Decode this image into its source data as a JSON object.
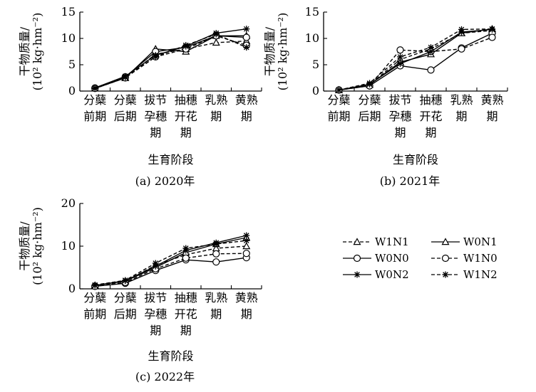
{
  "chart_data": [
    {
      "type": "line",
      "caption": "(a) 2020年",
      "ylabel": "干物质量/",
      "ylabel_unit": "(10² kg·hm⁻²)",
      "xlabel": "生育阶段",
      "ylim": [
        0,
        15
      ],
      "yticks": [
        "0",
        "5",
        "10",
        "15"
      ],
      "categories": [
        [
          "分蘖",
          "前期"
        ],
        [
          "分蘖",
          "后期"
        ],
        [
          "拔节",
          "孕穗",
          "期"
        ],
        [
          "抽穗",
          "开花",
          "期"
        ],
        [
          "乳熟",
          "期"
        ],
        [
          "黄熟",
          "期"
        ]
      ],
      "series": [
        {
          "name": "W1N1",
          "values": [
            0.5,
            2.5,
            7.0,
            8.0,
            9.2,
            9.5
          ]
        },
        {
          "name": "W0N1",
          "values": [
            0.5,
            2.5,
            8.0,
            7.5,
            10.5,
            10.5
          ]
        },
        {
          "name": "W0N0",
          "values": [
            0.6,
            2.7,
            7.5,
            8.3,
            10.5,
            10.2
          ]
        },
        {
          "name": "W1N0",
          "values": [
            0.5,
            2.5,
            6.5,
            8.0,
            10.5,
            8.7
          ]
        },
        {
          "name": "W0N2",
          "values": [
            0.6,
            2.8,
            6.8,
            8.5,
            11.0,
            11.8
          ]
        },
        {
          "name": "W1N2",
          "values": [
            0.5,
            2.6,
            6.5,
            8.7,
            10.8,
            8.3
          ]
        }
      ]
    },
    {
      "type": "line",
      "caption": "(b) 2021年",
      "ylabel": "干物质量/",
      "ylabel_unit": "(10² kg·hm⁻²)",
      "xlabel": "生育阶段",
      "ylim": [
        0,
        15
      ],
      "yticks": [
        "0",
        "5",
        "10",
        "15"
      ],
      "categories": [
        [
          "分蘖",
          "前期"
        ],
        [
          "分蘖",
          "后期"
        ],
        [
          "拔节",
          "孕穗",
          "期"
        ],
        [
          "抽穗",
          "开花",
          "期"
        ],
        [
          "乳熟",
          "期"
        ],
        [
          "黄熟",
          "期"
        ]
      ],
      "series": [
        {
          "name": "W1N1",
          "values": [
            0.2,
            1.2,
            6.0,
            8.0,
            11.0,
            11.5
          ]
        },
        {
          "name": "W0N1",
          "values": [
            0.2,
            1.2,
            5.5,
            7.0,
            11.0,
            11.8
          ]
        },
        {
          "name": "W0N0",
          "values": [
            0.2,
            1.0,
            4.8,
            4.0,
            8.2,
            11.0
          ]
        },
        {
          "name": "W1N0",
          "values": [
            0.2,
            1.0,
            7.8,
            7.5,
            8.0,
            10.2
          ]
        },
        {
          "name": "W0N2",
          "values": [
            0.2,
            1.3,
            5.2,
            7.5,
            11.2,
            11.7
          ]
        },
        {
          "name": "W1N2",
          "values": [
            0.2,
            1.5,
            6.5,
            8.3,
            11.7,
            11.8
          ]
        }
      ]
    },
    {
      "type": "line",
      "caption": "(c) 2022年",
      "ylabel": "干物质量/",
      "ylabel_unit": "(10² kg·hm⁻²)",
      "xlabel": "生育阶段",
      "ylim": [
        0,
        20
      ],
      "yticks": [
        "0",
        "10",
        "20"
      ],
      "categories": [
        [
          "分蘖",
          "前期"
        ],
        [
          "分蘖",
          "后期"
        ],
        [
          "拔节",
          "孕穗",
          "期"
        ],
        [
          "抽穗",
          "开花",
          "期"
        ],
        [
          "乳熟",
          "期"
        ],
        [
          "黄熟",
          "期"
        ]
      ],
      "series": [
        {
          "name": "W1N1",
          "values": [
            0.8,
            1.8,
            5.5,
            8.0,
            9.5,
            10.0
          ]
        },
        {
          "name": "W0N1",
          "values": [
            0.8,
            1.8,
            5.0,
            8.5,
            10.5,
            12.0
          ]
        },
        {
          "name": "W0N0",
          "values": [
            0.6,
            1.3,
            4.3,
            6.8,
            6.3,
            7.3
          ]
        },
        {
          "name": "W1N0",
          "values": [
            0.6,
            1.5,
            4.7,
            7.2,
            8.2,
            8.3
          ]
        },
        {
          "name": "W0N2",
          "values": [
            0.8,
            1.9,
            5.3,
            9.0,
            10.8,
            12.5
          ]
        },
        {
          "name": "W1N2",
          "values": [
            0.9,
            2.0,
            6.0,
            9.5,
            10.5,
            11.3
          ]
        }
      ]
    }
  ],
  "legend": [
    {
      "name": "W1N1",
      "marker": "triangle",
      "dash": true
    },
    {
      "name": "W0N1",
      "marker": "triangle",
      "dash": false
    },
    {
      "name": "W0N0",
      "marker": "circle",
      "dash": false
    },
    {
      "name": "W1N0",
      "marker": "circle",
      "dash": true
    },
    {
      "name": "W0N2",
      "marker": "star",
      "dash": false
    },
    {
      "name": "W1N2",
      "marker": "star",
      "dash": true
    }
  ]
}
